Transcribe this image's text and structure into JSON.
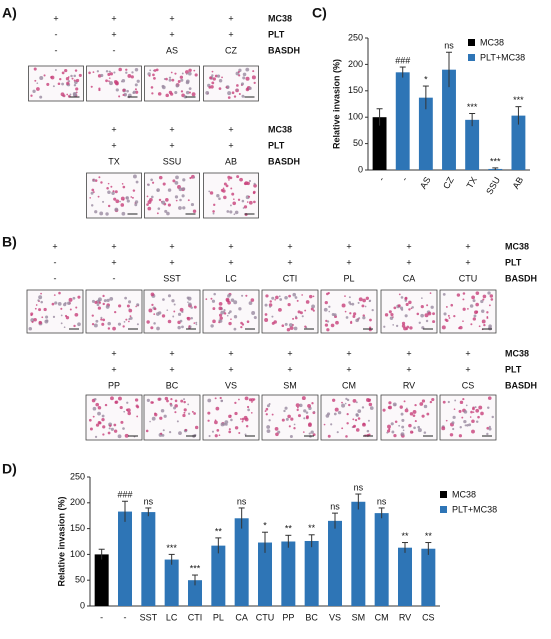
{
  "panel_a": {
    "label": "A)",
    "blocks": [
      {
        "rows": [
          {
            "label": "MC38",
            "cells": [
              "+",
              "+",
              "+",
              "+"
            ]
          },
          {
            "label": "PLT",
            "cells": [
              "-",
              "+",
              "+",
              "+"
            ]
          },
          {
            "label": "BASDH",
            "cells": [
              "-",
              "-",
              "AS",
              "CZ"
            ]
          }
        ]
      },
      {
        "rows": [
          {
            "label": "MC38",
            "cells": [
              "+",
              "+",
              "+"
            ]
          },
          {
            "label": "PLT",
            "cells": [
              "+",
              "+",
              "+"
            ]
          },
          {
            "label": "BASDH",
            "cells": [
              "TX",
              "SSU",
              "AB"
            ]
          }
        ]
      }
    ]
  },
  "panel_b": {
    "label": "B)",
    "blocks": [
      {
        "rows": [
          {
            "label": "MC38",
            "cells": [
              "+",
              "+",
              "+",
              "+",
              "+",
              "+",
              "+",
              "+"
            ]
          },
          {
            "label": "PLT",
            "cells": [
              "-",
              "+",
              "+",
              "+",
              "+",
              "+",
              "+",
              "+"
            ]
          },
          {
            "label": "BASDH",
            "cells": [
              "-",
              "-",
              "SST",
              "LC",
              "CTI",
              "PL",
              "CA",
              "CTU"
            ]
          }
        ]
      },
      {
        "rows": [
          {
            "label": "MC38",
            "cells": [
              "+",
              "+",
              "+",
              "+",
              "+",
              "+",
              "+"
            ]
          },
          {
            "label": "PLT",
            "cells": [
              "+",
              "+",
              "+",
              "+",
              "+",
              "+",
              "+"
            ]
          },
          {
            "label": "BASDH",
            "cells": [
              "PP",
              "BC",
              "VS",
              "SM",
              "CM",
              "RV",
              "CS"
            ]
          }
        ]
      }
    ]
  },
  "chart_data": [
    {
      "type": "bar",
      "panel_label": "C)",
      "y_label": "Relative invasion (%)",
      "categories": [
        "-",
        "-",
        "AS",
        "CZ",
        "TX",
        "SSU",
        "AB"
      ],
      "series": [
        {
          "name": "MC38",
          "color": "#000000",
          "values": [
            100,
            null,
            null,
            null,
            null,
            null,
            null
          ],
          "errors": [
            16,
            null,
            null,
            null,
            null,
            null,
            null
          ]
        },
        {
          "name": "PLT+MC38",
          "color": "#2e75b6",
          "values": [
            null,
            185,
            137,
            190,
            95,
            2,
            103
          ],
          "errors": [
            null,
            10,
            22,
            33,
            12,
            2,
            17
          ]
        }
      ],
      "annotations": [
        null,
        "###",
        "*",
        "ns",
        "***",
        "***",
        "***"
      ],
      "ylim": [
        0,
        250
      ],
      "yticks": [
        0,
        50,
        100,
        150,
        200,
        250
      ],
      "legend": "upper right"
    },
    {
      "type": "bar",
      "panel_label": "D)",
      "y_label": "Relative invasion (%)",
      "categories": [
        "-",
        "-",
        "SST",
        "LC",
        "CTI",
        "PL",
        "CA",
        "CTU",
        "PP",
        "BC",
        "VS",
        "SM",
        "CM",
        "RV",
        "CS"
      ],
      "series": [
        {
          "name": "MC38",
          "color": "#000000",
          "values": [
            100,
            null,
            null,
            null,
            null,
            null,
            null,
            null,
            null,
            null,
            null,
            null,
            null,
            null,
            null
          ],
          "errors": [
            10,
            null,
            null,
            null,
            null,
            null,
            null,
            null,
            null,
            null,
            null,
            null,
            null,
            null,
            null
          ]
        },
        {
          "name": "PLT+MC38",
          "color": "#2e75b6",
          "values": [
            null,
            183,
            182,
            90,
            50,
            117,
            170,
            123,
            125,
            126,
            165,
            202,
            180,
            113,
            111
          ],
          "errors": [
            null,
            20,
            8,
            10,
            10,
            15,
            20,
            20,
            12,
            12,
            15,
            15,
            10,
            10,
            12
          ]
        }
      ],
      "annotations": [
        null,
        "###",
        "ns",
        "***",
        "***",
        "**",
        "ns",
        "*",
        "**",
        "**",
        "ns",
        "ns",
        "ns",
        "**",
        "**"
      ],
      "ylim": [
        0,
        250
      ],
      "yticks": [
        0,
        50,
        100,
        150,
        200,
        250
      ],
      "legend": "upper right"
    }
  ]
}
